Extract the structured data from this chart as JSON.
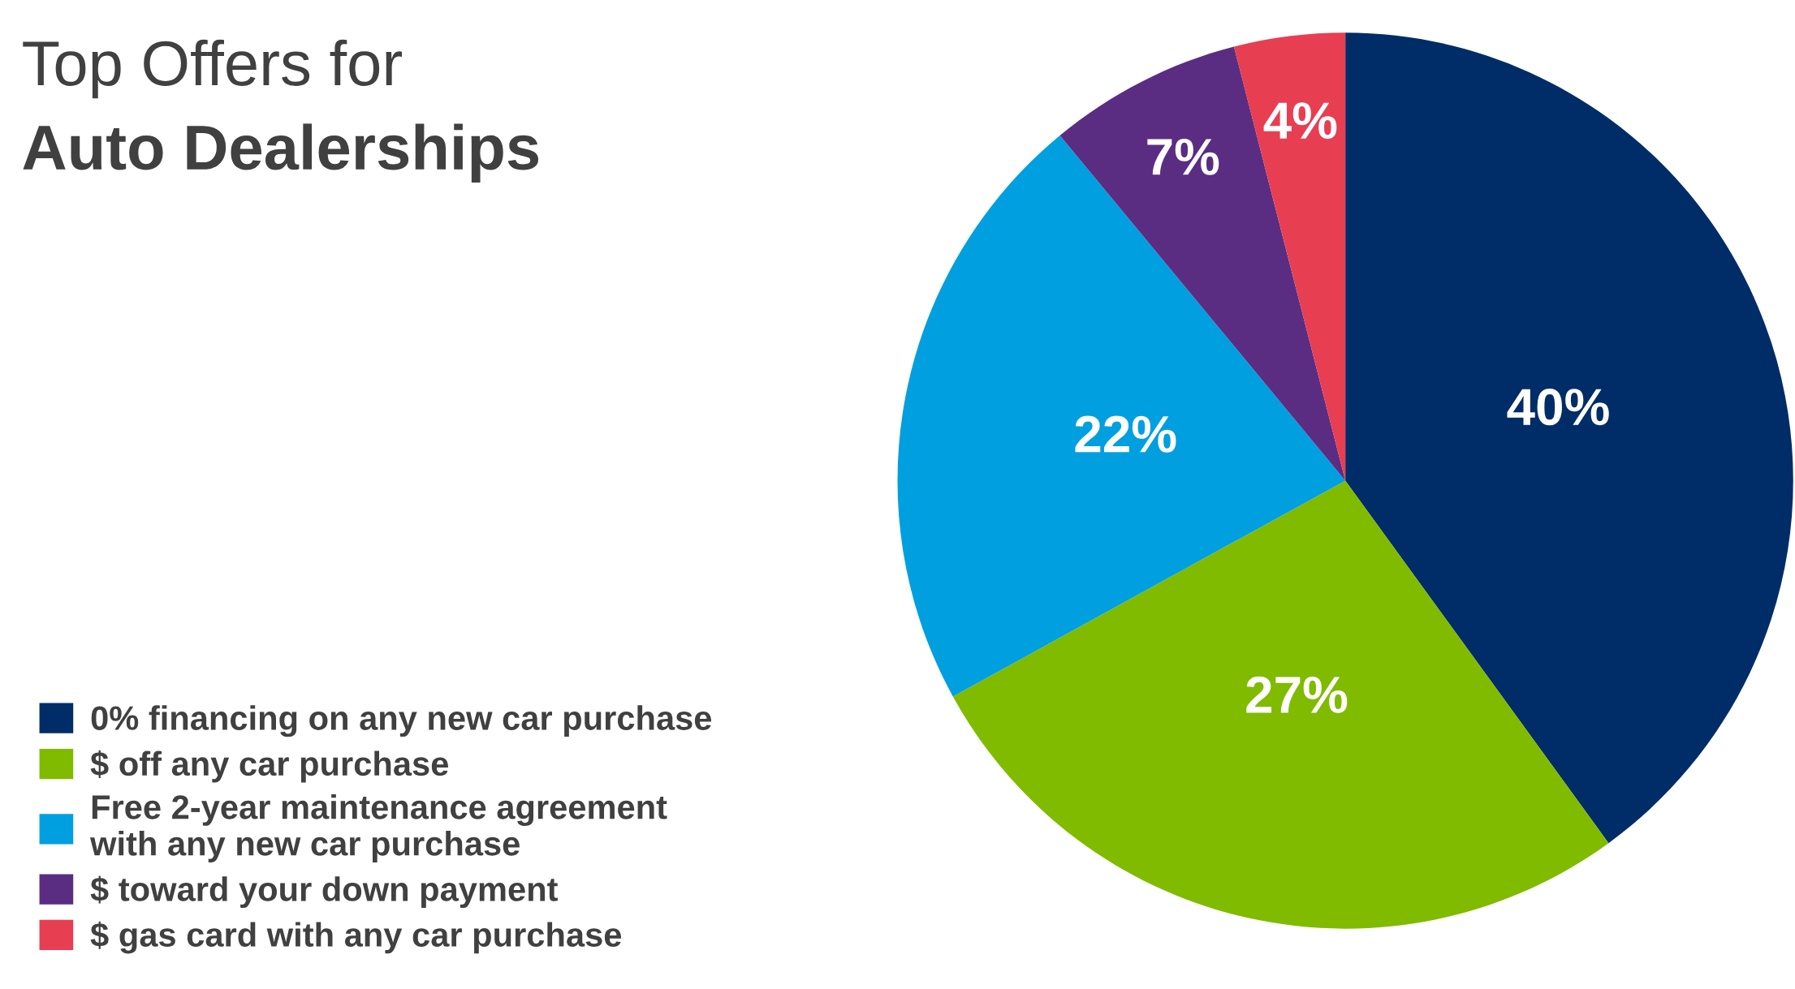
{
  "chart_data": {
    "type": "pie",
    "title": "Top Offers for",
    "subtitle": "Auto Dealerships",
    "categories": [
      "0% financing on any new car purchase",
      "$ off any car purchase",
      "Free 2-year maintenance agreement\nwith any new car purchase",
      "$ toward your down payment",
      "$ gas card with any car purchase"
    ],
    "values": [
      40,
      27,
      22,
      7,
      4
    ],
    "value_labels": [
      "40%",
      "27%",
      "22%",
      "7%",
      "4%"
    ],
    "colors": [
      "#002d67",
      "#80bb00",
      "#009fe0",
      "#5a2d83",
      "#e83e52"
    ],
    "legend": "bottom left"
  }
}
